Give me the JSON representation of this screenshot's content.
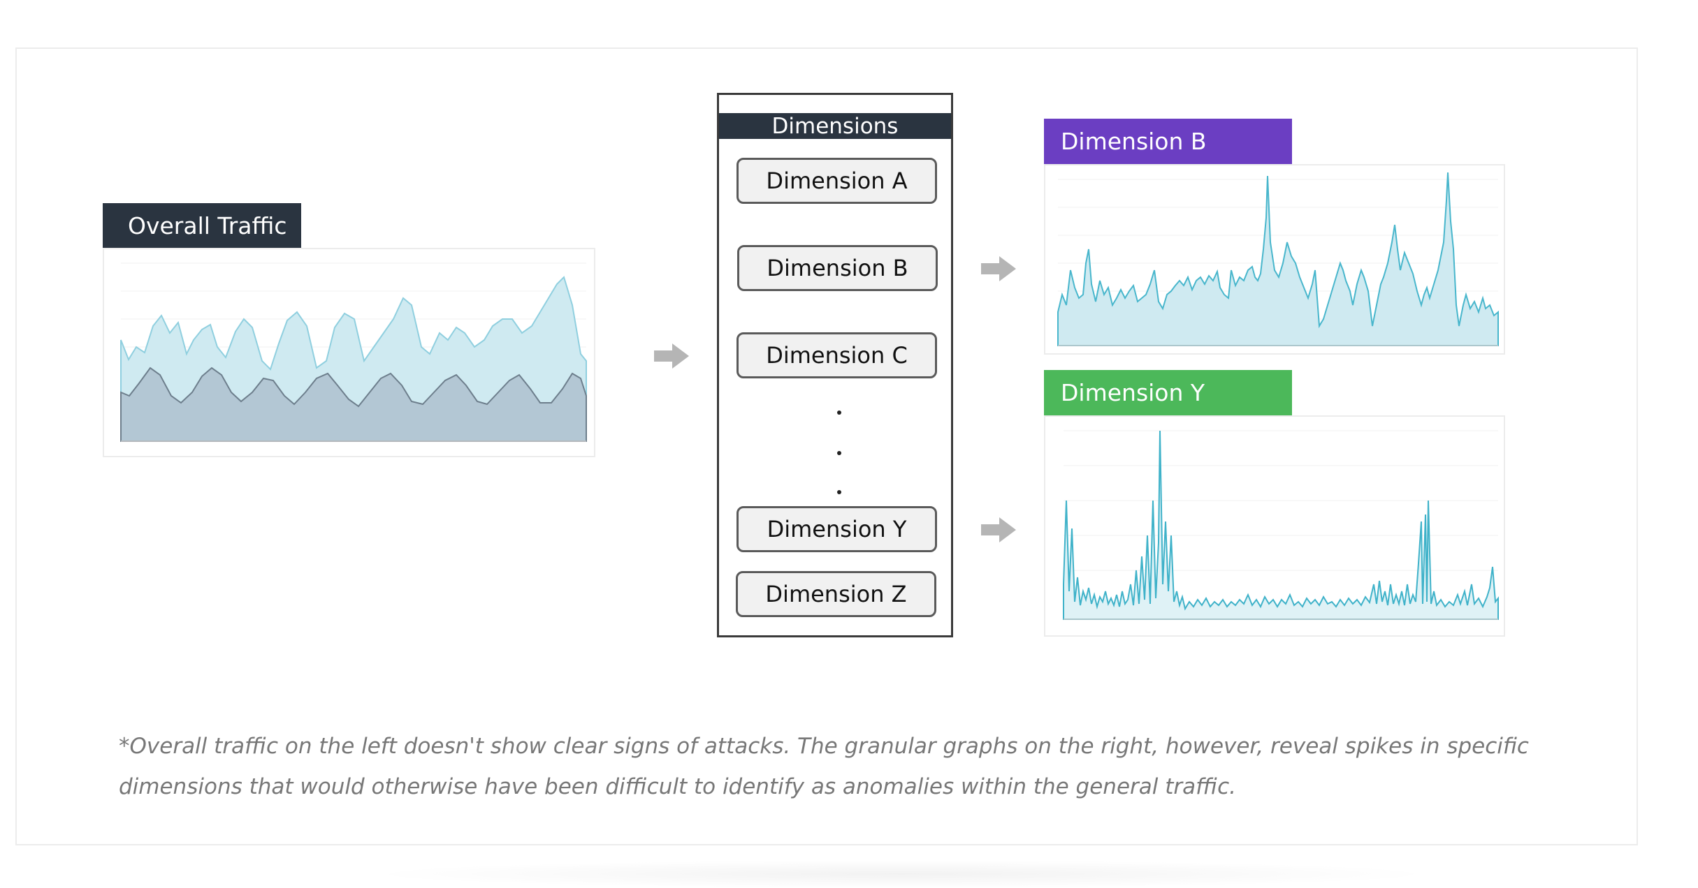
{
  "overall": {
    "title": "Overall Traffic"
  },
  "dimensions": {
    "title": "Dimensions",
    "items": [
      "Dimension A",
      "Dimension B",
      "Dimension C",
      "Dimension Y",
      "Dimension Z"
    ]
  },
  "panel_b": {
    "title": "Dimension B"
  },
  "panel_y": {
    "title": "Dimension Y"
  },
  "caption": {
    "line1": "*Overall traffic on the left doesn't show clear signs of attacks. The granular graphs on the right, however, reveal spikes in specific",
    "line2": "dimensions that would otherwise have been difficult to identify as anomalies within the general traffic."
  },
  "colors": {
    "dark_header": "#2a3440",
    "dimension_b": "#6b3ec2",
    "dimension_y": "#4cb85a",
    "area_light": "#cfeaf1",
    "area_dark": "#b3c7d4",
    "line_teal": "#3fb2c9"
  }
}
